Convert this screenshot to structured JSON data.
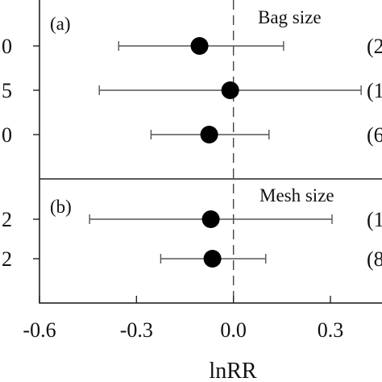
{
  "chart_data": {
    "type": "forest",
    "xlabel": "lnRR",
    "xlim": [
      -0.6,
      0.45
    ],
    "xticks": [
      "-0.6",
      "-0.3",
      "0.0",
      "0.3"
    ],
    "xtick_values": [
      -0.6,
      -0.3,
      0.0,
      0.3
    ],
    "reference_line": 0.0,
    "panels": [
      {
        "label": "(a)",
        "title": "Bag size",
        "rows": [
          {
            "y_label": "0",
            "mean": -0.105,
            "lower": -0.355,
            "upper": 0.155,
            "n_label": "(2"
          },
          {
            "y_label": "5",
            "mean": -0.01,
            "lower": -0.415,
            "upper": 0.395,
            "n_label": "(1"
          },
          {
            "y_label": "0",
            "mean": -0.075,
            "lower": -0.255,
            "upper": 0.11,
            "n_label": "(6"
          }
        ]
      },
      {
        "label": "(b)",
        "title": "Mesh size",
        "rows": [
          {
            "y_label": "2",
            "mean": -0.07,
            "lower": -0.445,
            "upper": 0.305,
            "n_label": "(1"
          },
          {
            "y_label": "2",
            "mean": -0.065,
            "lower": -0.225,
            "upper": 0.1,
            "n_label": "(8"
          }
        ]
      }
    ]
  }
}
